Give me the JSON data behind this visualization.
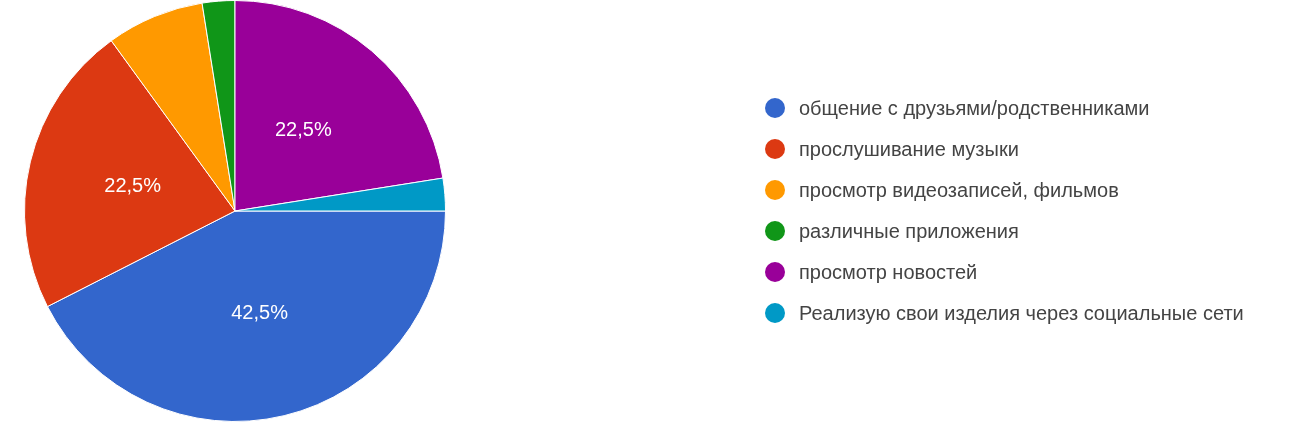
{
  "chart_data": {
    "type": "pie",
    "categories": [
      "общение с друзьями/родственниками",
      "прослушивание музыки",
      "просмотр видеозаписей, фильмов",
      "различные приложения",
      "просмотр новостей",
      "Реализую свои изделия через социальные сети"
    ],
    "values": [
      42.5,
      22.5,
      7.5,
      2.5,
      22.5,
      2.5
    ],
    "colors": [
      "#3366cc",
      "#dc3912",
      "#ff9900",
      "#109618",
      "#990099",
      "#0099c6"
    ],
    "value_labels": [
      "42,5%",
      "22,5%",
      null,
      null,
      "22,5%",
      null
    ],
    "legend": "right"
  }
}
